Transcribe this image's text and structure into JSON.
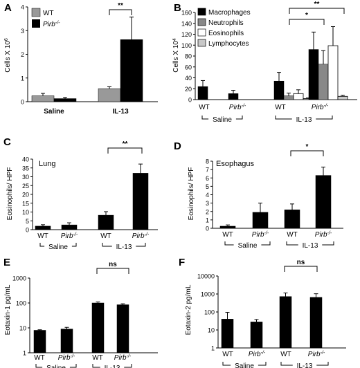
{
  "figure": {
    "panels": [
      {
        "id": "A",
        "letter": "A",
        "ylabel": "Cells X 10",
        "ylabel_sup": "6",
        "subtitle": ""
      },
      {
        "id": "B",
        "letter": "B",
        "ylabel": "Cells X 10",
        "ylabel_sup": "4",
        "subtitle": ""
      },
      {
        "id": "C",
        "letter": "C",
        "ylabel": "Eosinophils/ HPF",
        "ylabel_sup": "",
        "subtitle": "Lung"
      },
      {
        "id": "D",
        "letter": "D",
        "ylabel": "Eosinophils/ HPF",
        "ylabel_sup": "",
        "subtitle": "Esophagus"
      },
      {
        "id": "E",
        "letter": "E",
        "ylabel": "Eotaxin-1 pg/mL",
        "ylabel_sup": "",
        "subtitle": ""
      },
      {
        "id": "F",
        "letter": "F",
        "ylabel": "Eotaxin-2 pg/mL",
        "ylabel_sup": "",
        "subtitle": ""
      }
    ],
    "labels": {
      "wt": "WT",
      "pirb": "Pirb",
      "pirb_sup": "-/-",
      "saline": "Saline",
      "il13": "IL-13"
    }
  },
  "chart_data": [
    {
      "panel": "A",
      "type": "bar",
      "categories": [
        "Saline",
        "IL-13"
      ],
      "series": [
        {
          "name": "WT",
          "values": [
            0.25,
            0.55
          ],
          "errors": [
            0.1,
            0.08
          ],
          "color": "#999999"
        },
        {
          "name": "Pirb-/-",
          "values": [
            0.13,
            2.62
          ],
          "errors": [
            0.05,
            0.95
          ],
          "color": "#000000"
        }
      ],
      "ylim": [
        0,
        4
      ],
      "yticks": [
        0,
        1,
        2,
        3,
        4
      ],
      "legend": [
        "WT",
        "Pirb-/-"
      ],
      "significance": [
        {
          "label": "**"
        }
      ]
    },
    {
      "panel": "B",
      "type": "bar",
      "categories": [
        "WT Saline",
        "Pirb-/- Saline",
        "WT IL-13",
        "Pirb-/- IL-13"
      ],
      "series": [
        {
          "name": "Macrophages",
          "values": [
            24,
            11,
            34,
            92
          ],
          "errors": [
            11,
            6,
            16,
            32
          ],
          "color": "#000000"
        },
        {
          "name": "Neutrophils",
          "values": [
            0,
            0,
            7,
            65
          ],
          "errors": [
            0,
            0,
            5,
            25
          ],
          "color": "#888888"
        },
        {
          "name": "Eosinophils",
          "values": [
            0,
            0,
            11,
            99
          ],
          "errors": [
            0,
            0,
            7,
            35
          ],
          "color": "#ffffff"
        },
        {
          "name": "Lymphocytes",
          "values": [
            0,
            0,
            2,
            6
          ],
          "errors": [
            0,
            0,
            1,
            2
          ],
          "color": "#c8c8c8"
        }
      ],
      "ylim": [
        0,
        160
      ],
      "yticks": [
        0,
        20,
        40,
        60,
        80,
        100,
        120,
        140,
        160
      ],
      "legend": [
        "Macrophages",
        "Neutrophils",
        "Eosinophils",
        "Lymphocytes"
      ],
      "significance": [
        {
          "label": "**"
        },
        {
          "label": "*"
        }
      ]
    },
    {
      "panel": "C",
      "type": "bar",
      "categories": [
        "WT Saline",
        "Pirb-/- Saline",
        "WT IL-13",
        "Pirb-/- IL-13"
      ],
      "series": [
        {
          "name": "",
          "values": [
            2,
            2.7,
            8.2,
            32
          ],
          "errors": [
            0.8,
            1.2,
            2.0,
            5.2
          ],
          "color": "#000000"
        }
      ],
      "ylim": [
        0,
        40
      ],
      "yticks": [
        0,
        5,
        10,
        15,
        20,
        25,
        30,
        35,
        40
      ],
      "significance": [
        {
          "label": "**"
        }
      ]
    },
    {
      "panel": "D",
      "type": "bar",
      "categories": [
        "WT Saline",
        "Pirb-/- Saline",
        "WT IL-13",
        "Pirb-/- IL-13"
      ],
      "series": [
        {
          "name": "",
          "values": [
            0.25,
            1.9,
            2.2,
            6.3
          ],
          "errors": [
            0.15,
            1.1,
            0.7,
            1.0
          ],
          "color": "#000000"
        }
      ],
      "ylim": [
        0,
        8
      ],
      "yticks": [
        0,
        1,
        2,
        3,
        4,
        5,
        6,
        7,
        8
      ],
      "significance": [
        {
          "label": "*"
        }
      ]
    },
    {
      "panel": "E",
      "type": "bar",
      "scale": "log",
      "categories": [
        "WT Saline",
        "Pirb-/- Saline",
        "WT IL-13",
        "Pirb-/- IL-13"
      ],
      "series": [
        {
          "name": "",
          "values": [
            8,
            9,
            100,
            85
          ],
          "errors": [
            0.4,
            1.5,
            10,
            8
          ],
          "color": "#000000"
        }
      ],
      "ylim": [
        1,
        1000
      ],
      "yticks": [
        1,
        10,
        100,
        1000
      ],
      "significance": [
        {
          "label": "ns"
        }
      ]
    },
    {
      "panel": "F",
      "type": "bar",
      "scale": "log",
      "categories": [
        "WT Saline",
        "Pirb-/- Saline",
        "WT IL-13",
        "Pirb-/- IL-13"
      ],
      "series": [
        {
          "name": "",
          "values": [
            40,
            28,
            720,
            650
          ],
          "errors": [
            55,
            10,
            420,
            380
          ],
          "color": "#000000"
        }
      ],
      "ylim": [
        1,
        10000
      ],
      "yticks": [
        1,
        10,
        100,
        1000,
        10000
      ],
      "significance": [
        {
          "label": "ns"
        }
      ]
    }
  ]
}
